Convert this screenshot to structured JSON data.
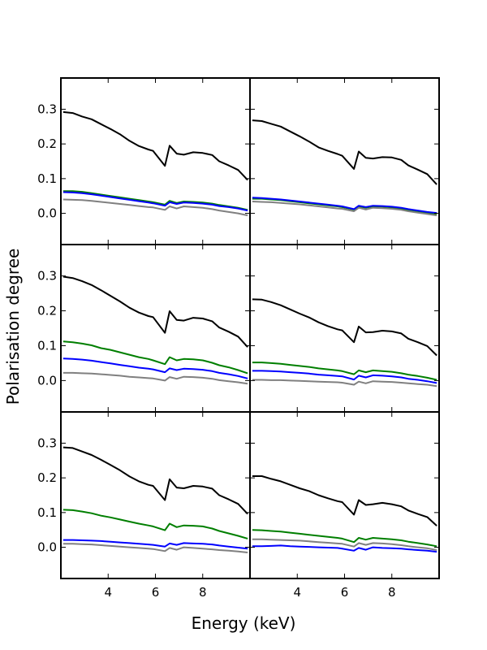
{
  "chart_data": {
    "type": "line",
    "xlabel": "Energy (keV)",
    "ylabel": "Polarisation degree",
    "xlim": [
      2,
      10
    ],
    "ylim": [
      -0.09,
      0.39
    ],
    "xticks": [
      4,
      6,
      8
    ],
    "xtick_labels": [
      "4",
      "6",
      "8"
    ],
    "yticks": [
      0.0,
      0.1,
      0.2,
      0.3
    ],
    "ytick_labels": [
      "0.0",
      "0.1",
      "0.2",
      "0.3"
    ],
    "grid": false,
    "layout": "3 rows x 2 columns, shared axes",
    "series_colors": {
      "total": "#000000",
      "green": "#007f00",
      "blue": "#0000ff",
      "gray": "#808080"
    },
    "x": [
      2.1,
      2.5,
      2.9,
      3.3,
      3.7,
      4.1,
      4.5,
      4.9,
      5.3,
      5.7,
      5.9,
      6.4,
      6.6,
      6.9,
      7.2,
      7.6,
      8.0,
      8.4,
      8.7,
      9.1,
      9.5,
      9.9
    ],
    "panels": [
      {
        "name": "row1-left",
        "series": [
          {
            "name": "black",
            "color": "#000000",
            "values": [
              0.292,
              0.289,
              0.279,
              0.271,
              0.257,
              0.243,
              0.228,
              0.209,
              0.194,
              0.184,
              0.18,
              0.137,
              0.195,
              0.172,
              0.169,
              0.176,
              0.174,
              0.168,
              0.15,
              0.138,
              0.125,
              0.096
            ]
          },
          {
            "name": "green",
            "color": "#007f00",
            "values": [
              0.064,
              0.064,
              0.062,
              0.058,
              0.054,
              0.05,
              0.046,
              0.042,
              0.038,
              0.034,
              0.032,
              0.025,
              0.036,
              0.03,
              0.034,
              0.033,
              0.031,
              0.028,
              0.024,
              0.02,
              0.016,
              0.01
            ]
          },
          {
            "name": "blue",
            "color": "#0000ff",
            "values": [
              0.061,
              0.06,
              0.058,
              0.055,
              0.051,
              0.047,
              0.043,
              0.039,
              0.035,
              0.031,
              0.029,
              0.022,
              0.032,
              0.027,
              0.031,
              0.03,
              0.028,
              0.025,
              0.021,
              0.018,
              0.014,
              0.008
            ]
          },
          {
            "name": "gray",
            "color": "#808080",
            "values": [
              0.04,
              0.039,
              0.038,
              0.036,
              0.033,
              0.03,
              0.027,
              0.024,
              0.021,
              0.018,
              0.017,
              0.01,
              0.02,
              0.014,
              0.02,
              0.018,
              0.016,
              0.012,
              0.008,
              0.004,
              0.0,
              -0.006
            ]
          }
        ]
      },
      {
        "name": "row1-right",
        "series": [
          {
            "name": "black",
            "color": "#000000",
            "values": [
              0.268,
              0.266,
              0.258,
              0.25,
              0.236,
              0.222,
              0.207,
              0.19,
              0.18,
              0.171,
              0.166,
              0.128,
              0.178,
              0.16,
              0.158,
              0.162,
              0.161,
              0.154,
              0.138,
              0.126,
              0.113,
              0.083
            ]
          },
          {
            "name": "green",
            "color": "#007f00",
            "values": [
              0.042,
              0.042,
              0.04,
              0.038,
              0.035,
              0.032,
              0.029,
              0.026,
              0.023,
              0.02,
              0.018,
              0.011,
              0.02,
              0.016,
              0.02,
              0.019,
              0.017,
              0.014,
              0.01,
              0.006,
              0.002,
              -0.003
            ]
          },
          {
            "name": "blue",
            "color": "#0000ff",
            "values": [
              0.045,
              0.044,
              0.042,
              0.04,
              0.037,
              0.034,
              0.031,
              0.028,
              0.025,
              0.022,
              0.02,
              0.012,
              0.022,
              0.018,
              0.022,
              0.021,
              0.019,
              0.016,
              0.012,
              0.008,
              0.004,
              0.001
            ]
          },
          {
            "name": "gray",
            "color": "#808080",
            "values": [
              0.034,
              0.033,
              0.032,
              0.03,
              0.028,
              0.026,
              0.023,
              0.02,
              0.017,
              0.014,
              0.013,
              0.006,
              0.016,
              0.011,
              0.016,
              0.015,
              0.013,
              0.01,
              0.006,
              0.002,
              -0.002,
              -0.006
            ]
          }
        ]
      },
      {
        "name": "row2-left",
        "series": [
          {
            "name": "black",
            "color": "#000000",
            "values": [
              0.298,
              0.294,
              0.285,
              0.274,
              0.259,
              0.243,
              0.227,
              0.209,
              0.195,
              0.185,
              0.182,
              0.137,
              0.199,
              0.174,
              0.172,
              0.18,
              0.178,
              0.17,
              0.152,
              0.14,
              0.126,
              0.096
            ]
          },
          {
            "name": "green",
            "color": "#007f00",
            "values": [
              0.112,
              0.11,
              0.106,
              0.101,
              0.093,
              0.088,
              0.081,
              0.074,
              0.067,
              0.062,
              0.058,
              0.047,
              0.067,
              0.058,
              0.062,
              0.061,
              0.058,
              0.051,
              0.044,
              0.038,
              0.03,
              0.021
            ]
          },
          {
            "name": "blue",
            "color": "#0000ff",
            "values": [
              0.063,
              0.062,
              0.06,
              0.057,
              0.053,
              0.049,
              0.045,
              0.041,
              0.037,
              0.034,
              0.032,
              0.024,
              0.035,
              0.03,
              0.034,
              0.033,
              0.031,
              0.027,
              0.022,
              0.018,
              0.013,
              0.006
            ]
          },
          {
            "name": "gray",
            "color": "#808080",
            "values": [
              0.022,
              0.022,
              0.021,
              0.02,
              0.018,
              0.016,
              0.014,
              0.011,
              0.009,
              0.007,
              0.006,
              0.0,
              0.01,
              0.005,
              0.011,
              0.01,
              0.008,
              0.005,
              0.001,
              -0.002,
              -0.005,
              -0.009
            ]
          }
        ]
      },
      {
        "name": "row2-right",
        "series": [
          {
            "name": "black",
            "color": "#000000",
            "values": [
              0.233,
              0.232,
              0.225,
              0.216,
              0.204,
              0.192,
              0.181,
              0.167,
              0.156,
              0.147,
              0.144,
              0.11,
              0.155,
              0.138,
              0.139,
              0.143,
              0.141,
              0.135,
              0.12,
              0.11,
              0.099,
              0.072
            ]
          },
          {
            "name": "green",
            "color": "#007f00",
            "values": [
              0.052,
              0.052,
              0.05,
              0.048,
              0.045,
              0.042,
              0.039,
              0.035,
              0.032,
              0.029,
              0.027,
              0.018,
              0.029,
              0.024,
              0.029,
              0.027,
              0.025,
              0.021,
              0.017,
              0.013,
              0.008,
              0.002
            ]
          },
          {
            "name": "blue",
            "color": "#0000ff",
            "values": [
              0.028,
              0.028,
              0.027,
              0.026,
              0.024,
              0.022,
              0.02,
              0.017,
              0.015,
              0.013,
              0.012,
              0.003,
              0.014,
              0.009,
              0.015,
              0.014,
              0.012,
              0.009,
              0.005,
              0.002,
              -0.002,
              -0.007
            ]
          },
          {
            "name": "gray",
            "color": "#808080",
            "values": [
              0.002,
              0.002,
              0.001,
              0.001,
              0.0,
              -0.001,
              -0.002,
              -0.003,
              -0.004,
              -0.005,
              -0.006,
              -0.012,
              -0.003,
              -0.008,
              -0.002,
              -0.003,
              -0.004,
              -0.006,
              -0.008,
              -0.01,
              -0.012,
              -0.016
            ]
          }
        ]
      },
      {
        "name": "row3-left",
        "series": [
          {
            "name": "black",
            "color": "#000000",
            "values": [
              0.288,
              0.286,
              0.276,
              0.266,
              0.252,
              0.237,
              0.222,
              0.204,
              0.19,
              0.18,
              0.177,
              0.136,
              0.196,
              0.172,
              0.17,
              0.177,
              0.175,
              0.169,
              0.15,
              0.138,
              0.125,
              0.096
            ]
          },
          {
            "name": "green",
            "color": "#007f00",
            "values": [
              0.108,
              0.107,
              0.103,
              0.098,
              0.091,
              0.086,
              0.08,
              0.074,
              0.068,
              0.063,
              0.06,
              0.049,
              0.068,
              0.058,
              0.063,
              0.062,
              0.06,
              0.054,
              0.047,
              0.04,
              0.033,
              0.025
            ]
          },
          {
            "name": "blue",
            "color": "#0000ff",
            "values": [
              0.021,
              0.021,
              0.02,
              0.019,
              0.018,
              0.016,
              0.014,
              0.012,
              0.01,
              0.008,
              0.007,
              0.002,
              0.011,
              0.007,
              0.012,
              0.011,
              0.01,
              0.008,
              0.005,
              0.002,
              -0.001,
              -0.004
            ]
          },
          {
            "name": "gray",
            "color": "#808080",
            "values": [
              0.01,
              0.01,
              0.009,
              0.008,
              0.006,
              0.004,
              0.002,
              0.0,
              -0.002,
              -0.004,
              -0.005,
              -0.011,
              -0.002,
              -0.007,
              0.0,
              -0.002,
              -0.004,
              -0.006,
              -0.008,
              -0.01,
              -0.012,
              -0.015
            ]
          }
        ]
      },
      {
        "name": "row3-right",
        "series": [
          {
            "name": "black",
            "color": "#000000",
            "values": [
              0.205,
              0.205,
              0.197,
              0.19,
              0.18,
              0.17,
              0.162,
              0.15,
              0.141,
              0.133,
              0.13,
              0.094,
              0.136,
              0.122,
              0.124,
              0.128,
              0.124,
              0.118,
              0.106,
              0.096,
              0.087,
              0.062
            ]
          },
          {
            "name": "green",
            "color": "#007f00",
            "values": [
              0.05,
              0.049,
              0.047,
              0.045,
              0.042,
              0.039,
              0.036,
              0.033,
              0.03,
              0.027,
              0.025,
              0.015,
              0.027,
              0.022,
              0.027,
              0.025,
              0.023,
              0.02,
              0.016,
              0.012,
              0.008,
              0.003
            ]
          },
          {
            "name": "blue",
            "color": "#0000ff",
            "values": [
              0.003,
              0.003,
              0.004,
              0.005,
              0.003,
              0.002,
              0.001,
              0.0,
              -0.001,
              -0.002,
              -0.004,
              -0.01,
              -0.002,
              -0.007,
              0.0,
              -0.002,
              -0.003,
              -0.004,
              -0.006,
              -0.008,
              -0.01,
              -0.013
            ]
          },
          {
            "name": "gray",
            "color": "#808080",
            "values": [
              0.023,
              0.023,
              0.022,
              0.021,
              0.02,
              0.019,
              0.017,
              0.015,
              0.013,
              0.011,
              0.01,
              0.002,
              0.012,
              0.007,
              0.012,
              0.011,
              0.009,
              0.006,
              0.003,
              0.0,
              -0.003,
              -0.008
            ]
          }
        ]
      }
    ]
  }
}
